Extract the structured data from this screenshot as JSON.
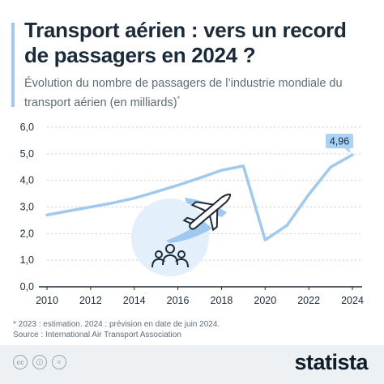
{
  "header": {
    "title": "Transport aérien : vers un record de passagers en 2024 ?",
    "subtitle": "Évolution du nombre de passagers de l’industrie mondiale du transport aérien (en milliards)",
    "subtitle_mark": "*"
  },
  "footer": {
    "note": "* 2023 : estimation. 2024 : prévision en date de juin 2024.",
    "source": "Source : International Air Transport Association",
    "logo": "statista",
    "license_icons": [
      "cc-icon",
      "by-icon",
      "equals-icon"
    ]
  },
  "colors": {
    "line": "#9fc9ef",
    "label_bg": "#a9d2f5",
    "title": "#1a2a3a",
    "axis": "#1a2a3a",
    "grid": "#c9cfd5",
    "illustration_circle": "#e3f0fb",
    "plane": "#1f2a36"
  },
  "chart_data": {
    "type": "line",
    "x": [
      2010,
      2011,
      2012,
      2013,
      2014,
      2015,
      2016,
      2017,
      2018,
      2019,
      2020,
      2021,
      2022,
      2023,
      2024
    ],
    "series": [
      {
        "values": [
          2.7,
          2.85,
          3.0,
          3.15,
          3.33,
          3.57,
          3.82,
          4.09,
          4.38,
          4.54,
          1.76,
          2.31,
          3.47,
          4.5,
          4.96
        ]
      }
    ],
    "xticks": [
      "2010",
      "2012",
      "2014",
      "2016",
      "2018",
      "2020",
      "2022",
      "2024"
    ],
    "yticks": [
      "0,0",
      "1,0",
      "2,0",
      "3,0",
      "4,0",
      "5,0",
      "6,0"
    ],
    "ylim": [
      0,
      6
    ],
    "xlim": [
      2010,
      2024
    ],
    "grid": true,
    "annotation": {
      "x": 2024,
      "label": "4,96"
    },
    "xlabel": "",
    "ylabel": ""
  }
}
